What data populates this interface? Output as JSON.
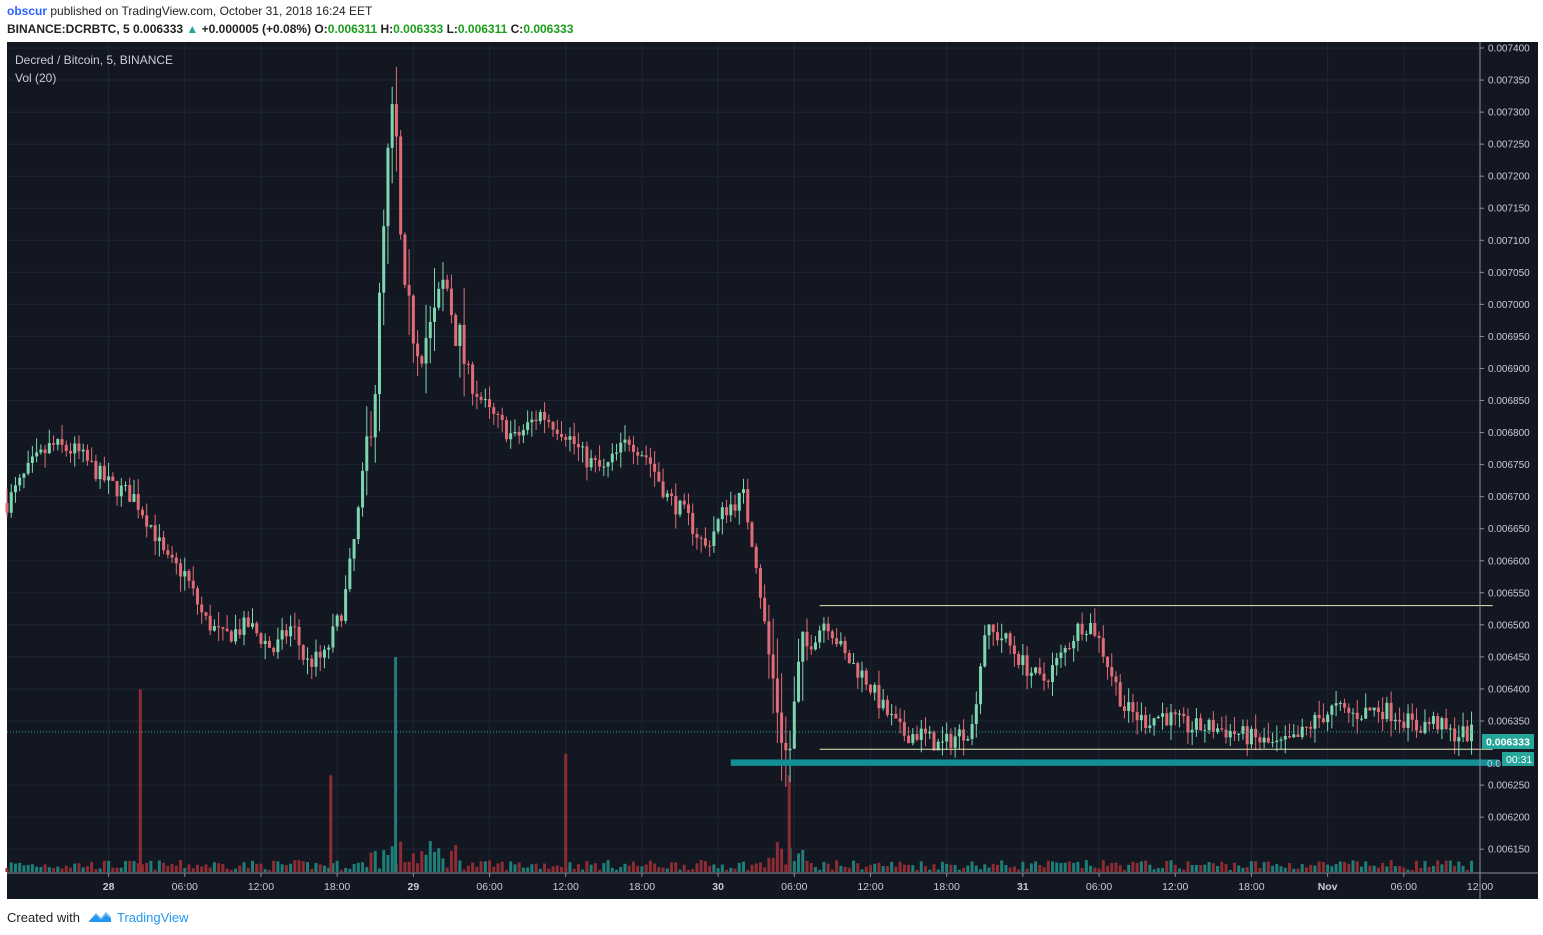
{
  "header": {
    "author": "obscur",
    "published_text": "published on TradingView.com, October 31, 2018 16:24 EET",
    "symbol": "BINANCE:DCRBTC, 5",
    "last_price": "0.006333",
    "change": "+0.000005 (+0.08%)",
    "o_label": "O:",
    "o_value": "0.006311",
    "h_label": "H:",
    "h_value": "0.006333",
    "l_label": "L:",
    "l_value": "0.006311",
    "c_label": "C:",
    "c_value": "0.006333"
  },
  "legend": {
    "title": "Decred / Bitcoin, 5, BINANCE",
    "volume": "Vol (20)"
  },
  "price_badge": {
    "value": "0.006333",
    "countdown": "00:31",
    "partial_label": "0.0"
  },
  "footer": {
    "created_with": "Created with",
    "brand": "TradingView"
  },
  "colors": {
    "background": "#131722",
    "grid": "#1f2534",
    "up": "#7ed6b0",
    "down": "#e06c75",
    "vol_up": "#1e7e78",
    "vol_down": "#8e2c34",
    "support_zone": "#138f96",
    "range_line": "#e9e9b8",
    "price_line": "#26a69a",
    "axis_text": "#c9ccd6"
  },
  "chart_data": {
    "type": "candlestick",
    "symbol": "DCRBTC",
    "interval": "5",
    "ylim": [
      0.00613,
      0.0074
    ],
    "y_ticks": [
      "0.007400",
      "0.007350",
      "0.007300",
      "0.007250",
      "0.007200",
      "0.007150",
      "0.007100",
      "0.007050",
      "0.007000",
      "0.006950",
      "0.006900",
      "0.006850",
      "0.006800",
      "0.006750",
      "0.006700",
      "0.006650",
      "0.006600",
      "0.006550",
      "0.006500",
      "0.006450",
      "0.006400",
      "0.006350",
      "0.006250",
      "0.006200",
      "0.006150"
    ],
    "x_ticks": [
      "28",
      "06:00",
      "12:00",
      "18:00",
      "29",
      "06:00",
      "12:00",
      "18:00",
      "30",
      "06:00",
      "12:00",
      "18:00",
      "31",
      "06:00",
      "12:00",
      "18:00",
      "Nov",
      "06:00",
      "12:00"
    ],
    "x_range_hours": [
      -8,
      108
    ],
    "last_price": 0.006333,
    "price_path": [
      [
        -8.0,
        0.00669
      ],
      [
        -6.0,
        0.00675
      ],
      [
        -4.5,
        0.00678
      ],
      [
        -2.5,
        0.00677
      ],
      [
        0.0,
        0.00672
      ],
      [
        2.0,
        0.0067
      ],
      [
        3.5,
        0.00665
      ],
      [
        4.5,
        0.0066
      ],
      [
        6.0,
        0.00658
      ],
      [
        7.5,
        0.00651
      ],
      [
        9.0,
        0.00648
      ],
      [
        11.0,
        0.0065
      ],
      [
        13.0,
        0.00646
      ],
      [
        14.5,
        0.0065
      ],
      [
        15.5,
        0.00644
      ],
      [
        17.0,
        0.00645
      ],
      [
        18.5,
        0.00653
      ],
      [
        19.5,
        0.00665
      ],
      [
        21.0,
        0.00688
      ],
      [
        22.0,
        0.00722
      ],
      [
        22.5,
        0.00732
      ],
      [
        23.2,
        0.007
      ],
      [
        24.5,
        0.00694
      ],
      [
        25.5,
        0.00696
      ],
      [
        26.5,
        0.00704
      ],
      [
        27.5,
        0.00695
      ],
      [
        28.5,
        0.00688
      ],
      [
        30.0,
        0.00683
      ],
      [
        32.0,
        0.00679
      ],
      [
        34.0,
        0.00683
      ],
      [
        36.0,
        0.0068
      ],
      [
        37.5,
        0.00676
      ],
      [
        39.0,
        0.00674
      ],
      [
        41.0,
        0.00679
      ],
      [
        42.5,
        0.00676
      ],
      [
        44.0,
        0.0067
      ],
      [
        45.5,
        0.00667
      ],
      [
        47.0,
        0.00662
      ],
      [
        48.5,
        0.00668
      ],
      [
        50.0,
        0.0067
      ],
      [
        51.0,
        0.0066
      ],
      [
        52.0,
        0.00645
      ],
      [
        53.5,
        0.00628
      ],
      [
        54.5,
        0.00645
      ],
      [
        55.5,
        0.00648
      ],
      [
        56.5,
        0.00651
      ],
      [
        58.0,
        0.00645
      ],
      [
        59.5,
        0.00642
      ],
      [
        61.0,
        0.00637
      ],
      [
        62.5,
        0.00633
      ],
      [
        64.0,
        0.00633
      ],
      [
        65.5,
        0.00631
      ],
      [
        67.0,
        0.00633
      ],
      [
        68.0,
        0.00634
      ],
      [
        69.0,
        0.00649
      ],
      [
        70.5,
        0.00648
      ],
      [
        72.0,
        0.00644
      ],
      [
        73.5,
        0.00641
      ],
      [
        75.0,
        0.00645
      ],
      [
        76.5,
        0.0065
      ],
      [
        77.5,
        0.0065
      ],
      [
        78.5,
        0.00645
      ],
      [
        80.0,
        0.00637
      ],
      [
        81.5,
        0.00635
      ],
      [
        83.0,
        0.00636
      ],
      [
        85.0,
        0.00634
      ],
      [
        87.0,
        0.00634
      ],
      [
        89.0,
        0.00633
      ],
      [
        90.5,
        0.00632
      ],
      [
        92.0,
        0.00631
      ],
      [
        93.5,
        0.00632
      ],
      [
        95.0,
        0.00635
      ],
      [
        96.5,
        0.00637
      ],
      [
        98.0,
        0.00636
      ],
      [
        100.0,
        0.00637
      ],
      [
        101.5,
        0.00636
      ],
      [
        103.0,
        0.00634
      ],
      [
        104.5,
        0.00635
      ],
      [
        105.5,
        0.00633
      ],
      [
        106.5,
        0.00633
      ],
      [
        107.5,
        0.00633
      ]
    ],
    "volume_spikes": [
      {
        "t": 2.5,
        "v": 0.85,
        "up": false
      },
      {
        "t": 22.6,
        "v": 1.0,
        "up": true
      },
      {
        "t": 17.5,
        "v": 0.45,
        "up": false
      },
      {
        "t": 36.0,
        "v": 0.55,
        "up": false
      },
      {
        "t": 53.6,
        "v": 0.45,
        "up": false
      }
    ],
    "annotations": [
      {
        "type": "hline",
        "y": 0.00653,
        "t_start": 56.0,
        "t_end": 109.0
      },
      {
        "type": "hline",
        "y": 0.006306,
        "t_start": 56.0,
        "t_end": 109.0
      },
      {
        "type": "zone",
        "y_top": 0.00629,
        "y_bottom": 0.00628,
        "t_start": 49.0,
        "t_end": 109.5
      }
    ]
  }
}
